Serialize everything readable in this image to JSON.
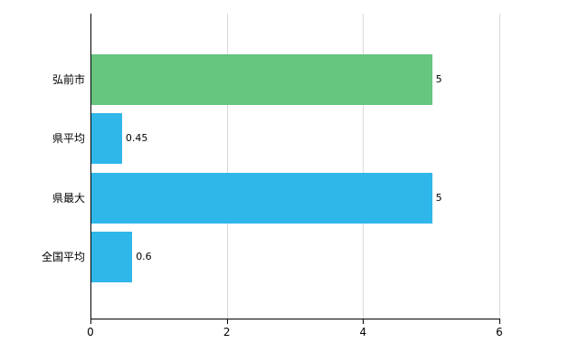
{
  "chart_data": {
    "type": "bar",
    "orientation": "horizontal",
    "title": "",
    "xlabel": "",
    "ylabel": "",
    "categories": [
      "弘前市",
      "県平均",
      "県最大",
      "全国平均"
    ],
    "values": [
      5,
      0.45,
      5,
      0.6
    ],
    "value_labels": [
      "5",
      "0.45",
      "5",
      "0.6"
    ],
    "bar_colors": [
      "#66c57e",
      "#2fb7e9",
      "#2fb7e9",
      "#2fb7e9"
    ],
    "xlim": [
      0,
      6
    ],
    "x_ticks": [
      0,
      2,
      4,
      6
    ],
    "x_tick_labels": [
      "0",
      "2",
      "4",
      "6"
    ],
    "grid": true,
    "legend": "none",
    "axis_color": "#000000",
    "gridline_color": "#d9d9d9",
    "background_color": "#ffffff"
  }
}
